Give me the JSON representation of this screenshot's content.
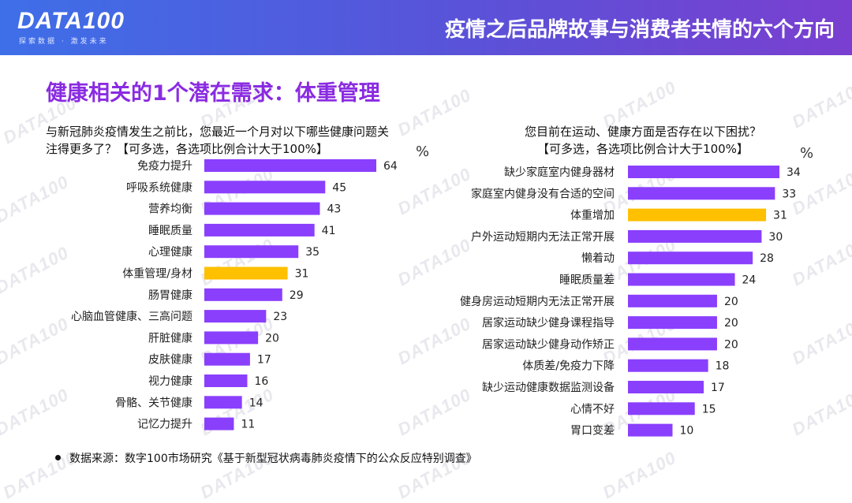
{
  "header": {
    "logo": "DATA100",
    "logo_sub": "探索数据 · 激发未来",
    "title": "疫情之后品牌故事与消费者共情的六个方向"
  },
  "section_title": "健康相关的1个潜在需求：体重管理",
  "source": "数据来源：数字100市场研究《基于新型冠状病毒肺炎疫情下的公众反应特别调查》",
  "watermark": "DATA100",
  "colors": {
    "bar": "#8a3ffc",
    "highlight": "#ffc000",
    "accent_title": "#8a2be2"
  },
  "chart_data": [
    {
      "type": "bar",
      "orientation": "horizontal",
      "question": [
        "与新冠肺炎疫情发生之前比，您最近一个月对以下哪些健康问题关",
        "注得更多了？【可多选，各选项比例合计大于100%】"
      ],
      "unit": "%",
      "categories": [
        "免疫力提升",
        "呼吸系统健康",
        "营养均衡",
        "睡眠质量",
        "心理健康",
        "体重管理/身材",
        "肠胃健康",
        "心脑血管健康、三高问题",
        "肝脏健康",
        "皮肤健康",
        "视力健康",
        "骨骼、关节健康",
        "记忆力提升"
      ],
      "values": [
        64,
        45,
        43,
        41,
        35,
        31,
        29,
        23,
        20,
        17,
        16,
        14,
        11
      ],
      "highlight_index": 5,
      "xlim": [
        0,
        64
      ]
    },
    {
      "type": "bar",
      "orientation": "horizontal",
      "question": [
        "您目前在运动、健康方面是否存在以下困扰？",
        "【可多选，各选项比例合计大于100%】"
      ],
      "unit": "%",
      "categories": [
        "缺少家庭室内健身器材",
        "家庭室内健身没有合适的空间",
        "体重增加",
        "户外运动短期内无法正常开展",
        "懒着动",
        "睡眠质量差",
        "健身房运动短期内无法正常开展",
        "居家运动缺少健身课程指导",
        "居家运动缺少健身动作矫正",
        "体质差/免疫力下降",
        "缺少运动健康数据监测设备",
        "心情不好",
        "胃口变差"
      ],
      "values": [
        34,
        33,
        31,
        30,
        28,
        24,
        20,
        20,
        20,
        18,
        17,
        15,
        10
      ],
      "highlight_index": 2,
      "xlim": [
        0,
        34
      ]
    }
  ]
}
